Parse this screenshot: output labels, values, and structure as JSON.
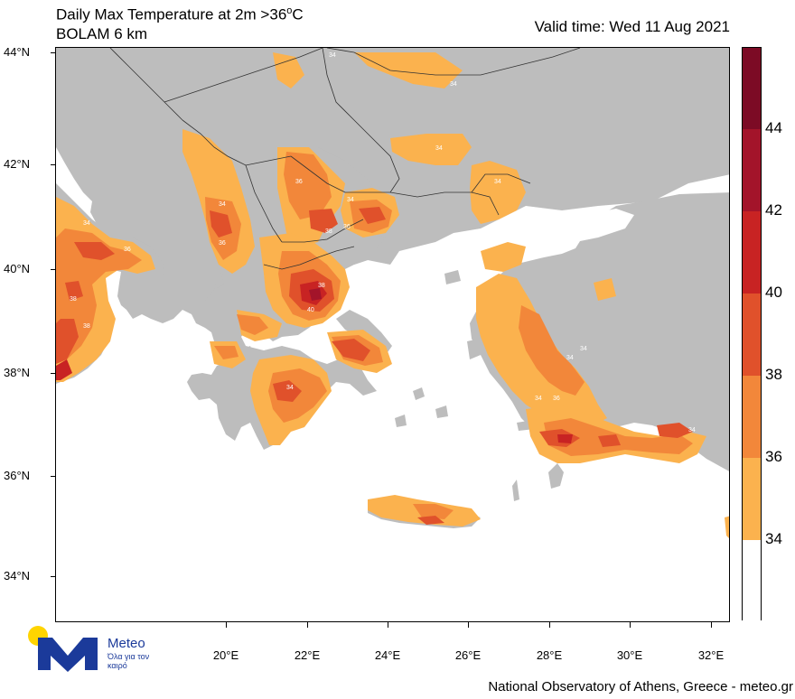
{
  "header": {
    "title_line1_main": "Daily Max Temperature at 2m >36",
    "title_line1_unit": "C",
    "title_line1_degree": "o",
    "title_line2": "BOLAM 6 km",
    "valid_time": "Valid time: Wed 11 Aug 2021"
  },
  "map": {
    "lat_labels": [
      "44°N",
      "42°N",
      "40°N",
      "38°N",
      "36°N",
      "34°N"
    ],
    "lon_labels": [
      "20°E",
      "22°E",
      "24°E",
      "26°E",
      "28°E",
      "30°E",
      "32°E"
    ],
    "contour_labels": [
      "34",
      "36",
      "38",
      "40"
    ],
    "colors": {
      "land": "#bdbdbd",
      "sea": "#ffffff",
      "band_34_36": "#fbb24e",
      "band_36_38": "#f2873a",
      "band_38_40": "#e0512b",
      "band_40_42": "#c82323",
      "band_42_44": "#a3142a",
      "band_44_plus": "#7c0b25",
      "border": "#333333"
    }
  },
  "colorbar": {
    "labels": [
      "44",
      "42",
      "40",
      "38",
      "36",
      "34"
    ],
    "segments": [
      {
        "color": "#7c0b25"
      },
      {
        "color": "#a3142a"
      },
      {
        "color": "#c82323"
      },
      {
        "color": "#e0512b"
      },
      {
        "color": "#f2873a"
      },
      {
        "color": "#fbb24e"
      },
      {
        "color": "#ffffff"
      }
    ]
  },
  "logo": {
    "name": "Meteo",
    "tagline": "Όλα για τον καιρό",
    "sun_color": "#ffd400",
    "mark_color": "#1b3a9a"
  },
  "footer": {
    "credit": "National Observatory of Athens, Greece - meteo.gr"
  }
}
